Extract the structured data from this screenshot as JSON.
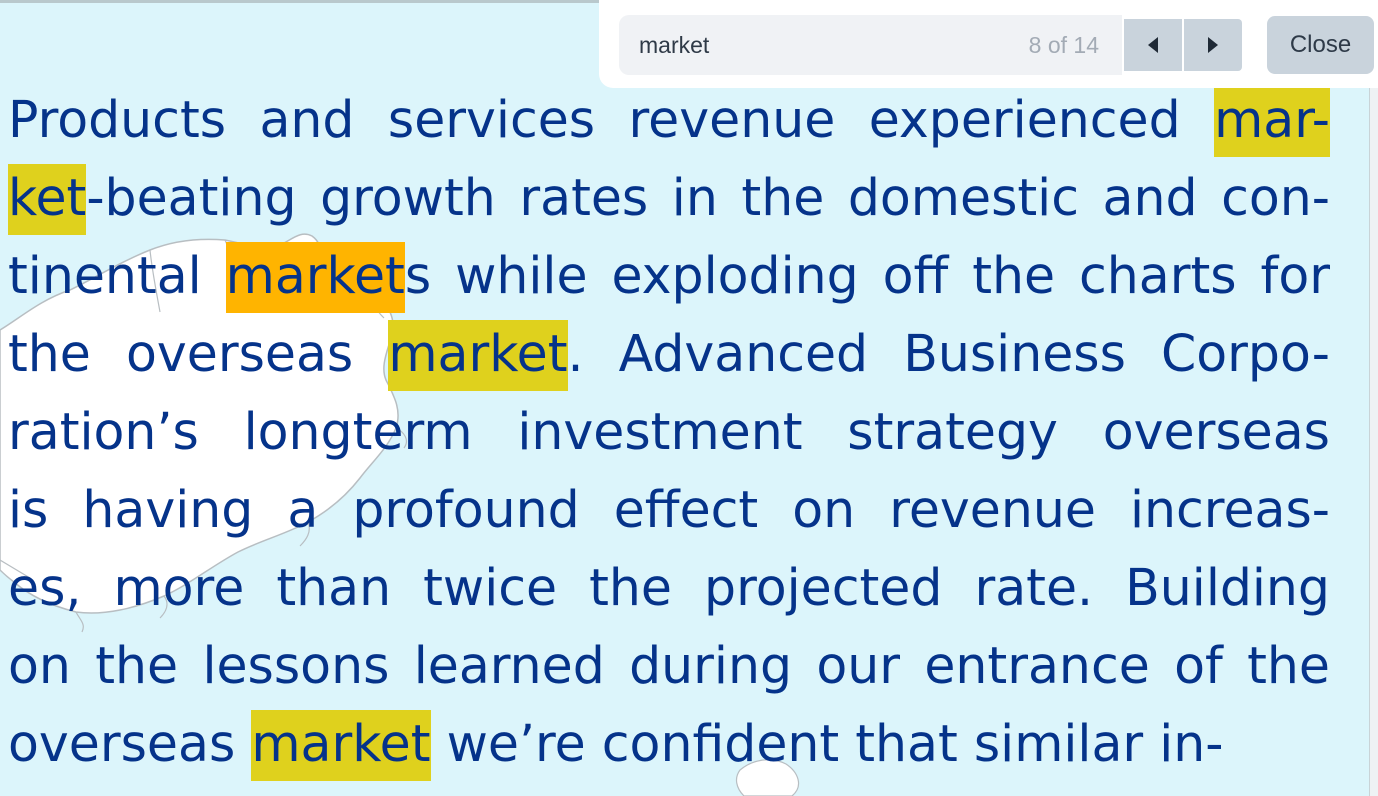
{
  "find": {
    "query": "market",
    "count": "8 of 14",
    "prev_icon": "triangle-left-icon",
    "next_icon": "triangle-right-icon",
    "close_label": "Close"
  },
  "colors": {
    "text": "#05338a",
    "background": "#dcf5fb",
    "highlight": "#dfd11d",
    "current_highlight": "#ffb400"
  },
  "document": {
    "lines": [
      {
        "parts": [
          {
            "t": "Products and services revenue experienced ",
            "h": ""
          },
          {
            "t": "mar-",
            "h": "match"
          }
        ]
      },
      {
        "parts": [
          {
            "t": "ket",
            "h": "match"
          },
          {
            "t": "-beating growth rates in the domestic and con-",
            "h": ""
          }
        ]
      },
      {
        "parts": [
          {
            "t": "tinental ",
            "h": ""
          },
          {
            "t": "market",
            "h": "current"
          },
          {
            "t": "s while exploding off the charts for",
            "h": ""
          }
        ]
      },
      {
        "parts": [
          {
            "t": "the overseas ",
            "h": ""
          },
          {
            "t": "market",
            "h": "match"
          },
          {
            "t": ". Advanced Business Corpo-",
            "h": ""
          }
        ]
      },
      {
        "parts": [
          {
            "t": "ration’s longterm investment strategy overseas",
            "h": ""
          }
        ]
      },
      {
        "parts": [
          {
            "t": "is having a profound effect on revenue increas-",
            "h": ""
          }
        ]
      },
      {
        "parts": [
          {
            "t": "es, more than twice the projected rate. Building",
            "h": ""
          }
        ]
      },
      {
        "parts": [
          {
            "t": "on the lessons learned during our entrance of the",
            "h": ""
          }
        ]
      },
      {
        "parts": [
          {
            "t": "overseas ",
            "h": ""
          },
          {
            "t": "market",
            "h": "match"
          },
          {
            "t": " we’re confident that similar in-",
            "h": ""
          }
        ]
      }
    ]
  }
}
